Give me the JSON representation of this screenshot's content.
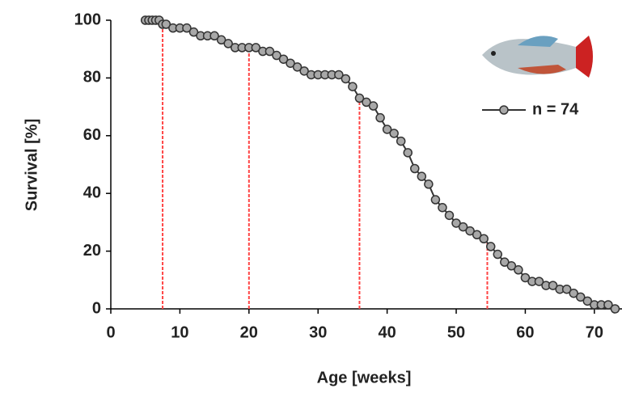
{
  "chart_data": {
    "type": "line",
    "x_label": "Age [weeks]",
    "y_label": "Survival [%]",
    "xlim": [
      0,
      74
    ],
    "xticks": [
      0,
      10,
      20,
      30,
      40,
      50,
      60,
      70
    ],
    "ylim": [
      0,
      100
    ],
    "yticks": [
      0,
      20,
      40,
      60,
      80,
      100
    ],
    "grid": false,
    "legend": "upper right",
    "series": [
      {
        "name": "n = 74",
        "color": "#333333",
        "marker_fill": "#a8a8a8",
        "x": [
          5,
          5.5,
          6,
          6.5,
          7,
          7.5,
          8,
          9,
          10,
          11,
          12,
          13,
          14,
          15,
          16,
          17,
          18,
          19,
          20,
          21,
          22,
          23,
          24,
          25,
          26,
          27,
          28,
          29,
          30,
          31,
          32,
          33,
          34,
          35,
          36,
          37,
          38,
          39,
          40,
          41,
          42,
          43,
          44,
          45,
          46,
          47,
          48,
          49,
          50,
          51,
          52,
          53,
          54,
          55,
          56,
          57,
          58,
          59,
          60,
          61,
          62,
          63,
          64,
          65,
          66,
          67,
          68,
          69,
          70,
          71,
          72,
          73
        ],
        "values": [
          100,
          100,
          100,
          100,
          100,
          98.6,
          98.6,
          97.3,
          97.3,
          97.3,
          95.9,
          94.6,
          94.6,
          94.6,
          93.2,
          91.9,
          90.5,
          90.5,
          90.5,
          90.5,
          89.2,
          89.2,
          87.8,
          86.5,
          85.1,
          83.8,
          82.4,
          81.1,
          81.1,
          81.1,
          81.1,
          81.1,
          79.7,
          77,
          73,
          71.6,
          70.3,
          66.2,
          62.2,
          60.8,
          58.1,
          54.1,
          48.6,
          45.9,
          43.2,
          37.8,
          35.1,
          32.4,
          29.7,
          28.4,
          27,
          25.7,
          24.3,
          21.6,
          18.9,
          16.2,
          14.9,
          13.5,
          10.8,
          9.5,
          9.5,
          8.1,
          8.1,
          6.8,
          6.8,
          5.4,
          4.1,
          2.7,
          1.4,
          1.4,
          1.4,
          0
        ]
      }
    ],
    "reference_lines": {
      "color": "#ff4444",
      "x": [
        7.5,
        20,
        36,
        54.5
      ],
      "y": [
        99,
        90,
        74,
        24
      ]
    }
  }
}
